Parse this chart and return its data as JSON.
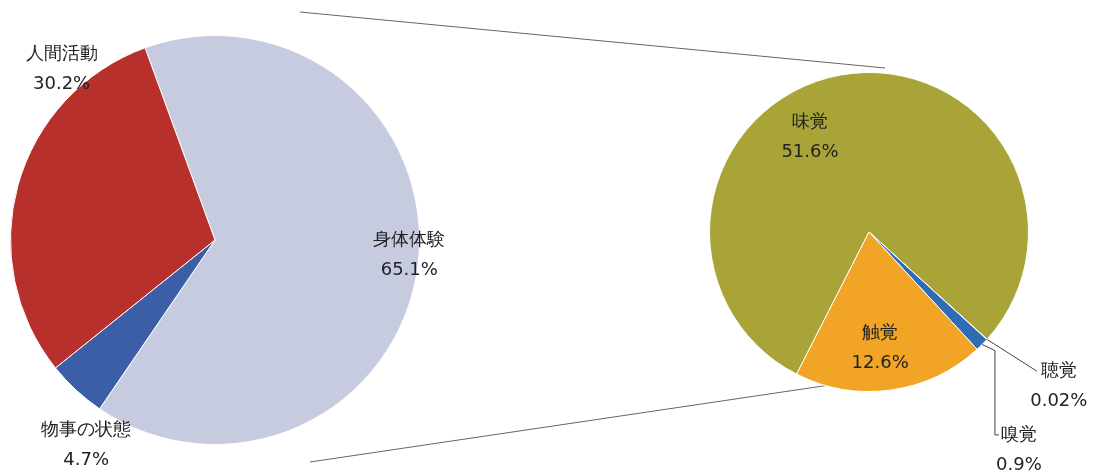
{
  "chart_data": [
    {
      "type": "pie",
      "categories": [
        "身体体験",
        "物事の状態",
        "人間活動"
      ],
      "values": [
        65.1,
        4.7,
        30.2
      ],
      "colors": [
        "#c6cbe0",
        "#3b5ea6",
        "#b8302b"
      ],
      "value_labels": [
        "65.1%",
        "4.7%",
        "30.2%"
      ]
    },
    {
      "type": "pie",
      "categories": [
        "味覚",
        "聴覚",
        "嗅覚",
        "触覚"
      ],
      "values": [
        51.6,
        0.02,
        0.9,
        12.6
      ],
      "colors": [
        "#a9a437",
        "#7f7f7f",
        "#2e6db4",
        "#f2a427"
      ],
      "value_labels": [
        "51.6%",
        "0.02%",
        "0.9%",
        "12.6%"
      ]
    }
  ]
}
